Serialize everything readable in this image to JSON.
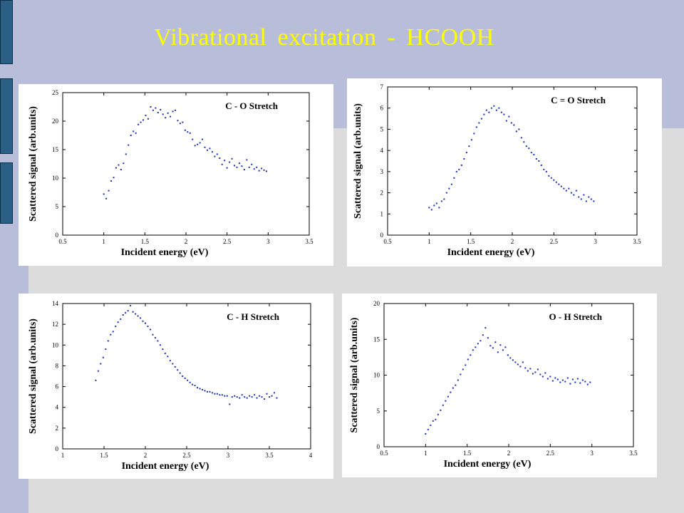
{
  "slide": {
    "title": "Vibrational  excitation  - HCOOH",
    "colors": {
      "background": "#dcdcdc",
      "banner": "#b8bed9",
      "title": "#ffff00",
      "tab": "#2a5f86",
      "points": "#1a2fb0"
    }
  },
  "chart_data": [
    {
      "type": "scatter",
      "title": "C - O Stretch",
      "xlabel": "Incident energy (eV)",
      "ylabel": "Scattered signal (arb.units)",
      "xlim": [
        0.5,
        3.5
      ],
      "ylim": [
        0,
        25
      ],
      "xticks": [
        "0.5",
        "1",
        "1.5",
        "2",
        "2.5",
        "3",
        "3.5"
      ],
      "yticks": [
        "0",
        "5",
        "10",
        "15",
        "20",
        "25"
      ],
      "xtick_values": [
        0.5,
        1,
        1.5,
        2,
        2.5,
        3,
        3.5
      ],
      "ytick_values": [
        0,
        5,
        10,
        15,
        20,
        25
      ],
      "grid": false,
      "x": [
        1.0,
        1.03,
        1.06,
        1.09,
        1.12,
        1.15,
        1.18,
        1.21,
        1.24,
        1.27,
        1.3,
        1.33,
        1.36,
        1.39,
        1.42,
        1.45,
        1.48,
        1.51,
        1.54,
        1.57,
        1.6,
        1.63,
        1.66,
        1.69,
        1.72,
        1.75,
        1.78,
        1.81,
        1.84,
        1.87,
        1.9,
        1.93,
        1.96,
        1.99,
        2.02,
        2.05,
        2.08,
        2.11,
        2.14,
        2.17,
        2.2,
        2.23,
        2.26,
        2.29,
        2.32,
        2.35,
        2.38,
        2.41,
        2.44,
        2.47,
        2.5,
        2.53,
        2.56,
        2.59,
        2.62,
        2.65,
        2.68,
        2.71,
        2.74,
        2.77,
        2.8,
        2.83,
        2.86,
        2.89,
        2.92,
        2.95,
        2.98
      ],
      "y": [
        7.2,
        6.4,
        7.8,
        9.5,
        10.1,
        11.8,
        12.3,
        11.5,
        12.6,
        14.2,
        15.8,
        17.5,
        18.2,
        17.9,
        19.4,
        19.8,
        20.2,
        21.0,
        20.4,
        22.5,
        21.9,
        22.3,
        21.5,
        22.0,
        21.2,
        20.6,
        21.4,
        20.8,
        21.7,
        21.9,
        20.1,
        19.6,
        19.8,
        18.4,
        18.1,
        17.9,
        16.8,
        15.7,
        15.9,
        16.2,
        16.8,
        15.4,
        14.9,
        15.2,
        14.6,
        13.8,
        14.2,
        13.5,
        12.4,
        13.1,
        11.8,
        12.8,
        13.4,
        12.2,
        11.9,
        12.6,
        12.1,
        11.5,
        13.2,
        11.9,
        12.4,
        11.6,
        11.9,
        11.3,
        11.7,
        11.4,
        11.2
      ]
    },
    {
      "type": "scatter",
      "title": "C = O Stretch",
      "xlabel": "Incident energy (eV)",
      "ylabel": "Scattered signal (arb.units)",
      "xlim": [
        0.5,
        3.5
      ],
      "ylim": [
        0,
        7
      ],
      "xticks": [
        "0.5",
        "1",
        "1.5",
        "2",
        "2.5",
        "3",
        "3.5"
      ],
      "yticks": [
        "0",
        "1",
        "2",
        "3",
        "4",
        "5",
        "6",
        "7"
      ],
      "xtick_values": [
        0.5,
        1,
        1.5,
        2,
        2.5,
        3,
        3.5
      ],
      "ytick_values": [
        0,
        1,
        2,
        3,
        4,
        5,
        6,
        7
      ],
      "grid": false,
      "x": [
        1.0,
        1.03,
        1.06,
        1.09,
        1.12,
        1.15,
        1.18,
        1.21,
        1.24,
        1.27,
        1.3,
        1.33,
        1.36,
        1.39,
        1.42,
        1.45,
        1.48,
        1.51,
        1.54,
        1.57,
        1.6,
        1.63,
        1.66,
        1.69,
        1.72,
        1.75,
        1.78,
        1.81,
        1.84,
        1.87,
        1.9,
        1.93,
        1.96,
        1.99,
        2.02,
        2.05,
        2.08,
        2.11,
        2.14,
        2.17,
        2.2,
        2.23,
        2.26,
        2.29,
        2.32,
        2.35,
        2.38,
        2.41,
        2.44,
        2.47,
        2.5,
        2.53,
        2.56,
        2.59,
        2.62,
        2.65,
        2.68,
        2.71,
        2.74,
        2.77,
        2.8,
        2.83,
        2.86,
        2.89,
        2.92,
        2.95,
        2.98
      ],
      "y": [
        1.3,
        1.2,
        1.4,
        1.5,
        1.3,
        1.6,
        1.7,
        2.0,
        2.2,
        2.4,
        2.7,
        3.0,
        3.1,
        3.3,
        3.6,
        3.9,
        4.2,
        4.5,
        4.8,
        5.1,
        5.3,
        5.5,
        5.7,
        5.9,
        5.8,
        6.0,
        6.1,
        5.9,
        6.0,
        5.8,
        5.7,
        5.4,
        5.6,
        5.3,
        5.2,
        4.9,
        5.0,
        4.6,
        4.4,
        4.2,
        4.1,
        3.9,
        3.8,
        3.6,
        3.5,
        3.3,
        3.1,
        3.0,
        2.8,
        2.7,
        2.6,
        2.5,
        2.4,
        2.3,
        2.2,
        2.1,
        2.2,
        2.0,
        1.9,
        2.1,
        1.8,
        1.7,
        1.9,
        1.6,
        1.8,
        1.7,
        1.6
      ]
    },
    {
      "type": "scatter",
      "title": "C - H Stretch",
      "xlabel": "Incident energy (eV)",
      "ylabel": "Scattered signal (arb.units)",
      "xlim": [
        1,
        4
      ],
      "ylim": [
        0,
        14
      ],
      "xticks": [
        "1",
        "1.5",
        "2",
        "2.5",
        "3",
        "3.5",
        "4"
      ],
      "yticks": [
        "0",
        "2",
        "4",
        "6",
        "8",
        "10",
        "12",
        "14"
      ],
      "xtick_values": [
        1,
        1.5,
        2,
        2.5,
        3,
        3.5,
        4
      ],
      "ytick_values": [
        0,
        2,
        4,
        6,
        8,
        10,
        12,
        14
      ],
      "grid": false,
      "x": [
        1.4,
        1.43,
        1.46,
        1.49,
        1.52,
        1.55,
        1.58,
        1.61,
        1.64,
        1.67,
        1.7,
        1.73,
        1.76,
        1.79,
        1.82,
        1.85,
        1.88,
        1.91,
        1.94,
        1.97,
        2.0,
        2.03,
        2.06,
        2.09,
        2.12,
        2.15,
        2.18,
        2.21,
        2.24,
        2.27,
        2.3,
        2.33,
        2.36,
        2.39,
        2.42,
        2.45,
        2.48,
        2.51,
        2.54,
        2.57,
        2.6,
        2.63,
        2.66,
        2.69,
        2.72,
        2.75,
        2.78,
        2.81,
        2.84,
        2.87,
        2.9,
        2.93,
        2.96,
        2.99,
        3.02,
        3.05,
        3.08,
        3.11,
        3.14,
        3.17,
        3.2,
        3.23,
        3.26,
        3.29,
        3.32,
        3.35,
        3.38,
        3.41,
        3.44,
        3.47,
        3.5,
        3.53,
        3.56,
        3.59
      ],
      "y": [
        6.6,
        7.5,
        8.2,
        8.8,
        9.6,
        10.4,
        11.0,
        11.3,
        11.8,
        12.2,
        12.5,
        12.9,
        13.1,
        13.3,
        13.8,
        13.2,
        13.0,
        12.8,
        12.6,
        12.3,
        12.1,
        11.8,
        11.5,
        11.0,
        10.7,
        10.4,
        10.0,
        9.6,
        9.2,
        8.9,
        8.5,
        8.2,
        7.9,
        7.6,
        7.3,
        7.0,
        6.8,
        6.6,
        6.4,
        6.2,
        6.1,
        5.9,
        5.8,
        5.7,
        5.6,
        5.5,
        5.5,
        5.4,
        5.3,
        5.3,
        5.2,
        5.2,
        5.1,
        5.1,
        4.3,
        5.0,
        5.1,
        5.0,
        4.9,
        5.2,
        5.0,
        4.9,
        5.1,
        5.0,
        5.2,
        4.9,
        5.1,
        5.0,
        4.8,
        5.3,
        5.0,
        5.1,
        5.4,
        4.9
      ]
    },
    {
      "type": "scatter",
      "title": "O - H Stretch",
      "xlabel": "Incident energy (eV)",
      "ylabel": "Scattered signal (arb.units)",
      "xlim": [
        0.5,
        3.5
      ],
      "ylim": [
        0,
        20
      ],
      "xticks": [
        "0.5",
        "1",
        "1.5",
        "2",
        "2.5",
        "3",
        "3.5"
      ],
      "yticks": [
        "0",
        "5",
        "10",
        "15",
        "20"
      ],
      "xtick_values": [
        0.5,
        1,
        1.5,
        2,
        2.5,
        3,
        3.5
      ],
      "ytick_values": [
        0,
        5,
        10,
        15,
        20
      ],
      "grid": false,
      "x": [
        1.0,
        1.03,
        1.06,
        1.09,
        1.12,
        1.15,
        1.18,
        1.21,
        1.24,
        1.27,
        1.3,
        1.33,
        1.36,
        1.39,
        1.42,
        1.45,
        1.48,
        1.51,
        1.54,
        1.57,
        1.6,
        1.63,
        1.66,
        1.69,
        1.72,
        1.75,
        1.78,
        1.81,
        1.84,
        1.87,
        1.9,
        1.93,
        1.96,
        1.99,
        2.02,
        2.05,
        2.08,
        2.11,
        2.14,
        2.17,
        2.2,
        2.23,
        2.26,
        2.29,
        2.32,
        2.35,
        2.38,
        2.41,
        2.44,
        2.47,
        2.5,
        2.53,
        2.56,
        2.59,
        2.62,
        2.65,
        2.68,
        2.71,
        2.74,
        2.77,
        2.8,
        2.83,
        2.86,
        2.89,
        2.92,
        2.95,
        2.98
      ],
      "y": [
        1.8,
        2.4,
        3.0,
        3.6,
        3.8,
        4.5,
        5.1,
        5.8,
        6.4,
        7.0,
        7.6,
        8.2,
        8.6,
        9.3,
        10.1,
        10.8,
        11.4,
        12.2,
        12.8,
        13.5,
        13.9,
        14.4,
        14.8,
        15.6,
        16.6,
        15.2,
        14.1,
        13.8,
        14.6,
        13.2,
        14.2,
        13.5,
        13.9,
        12.8,
        12.4,
        12.1,
        11.8,
        11.5,
        11.2,
        11.8,
        11.0,
        10.6,
        10.9,
        10.2,
        10.4,
        10.8,
        10.1,
        9.8,
        10.3,
        9.5,
        9.8,
        9.2,
        9.6,
        9.4,
        9.0,
        9.3,
        9.1,
        9.6,
        8.8,
        9.4,
        9.0,
        9.5,
        8.9,
        9.3,
        9.1,
        8.7,
        9.0
      ]
    }
  ]
}
